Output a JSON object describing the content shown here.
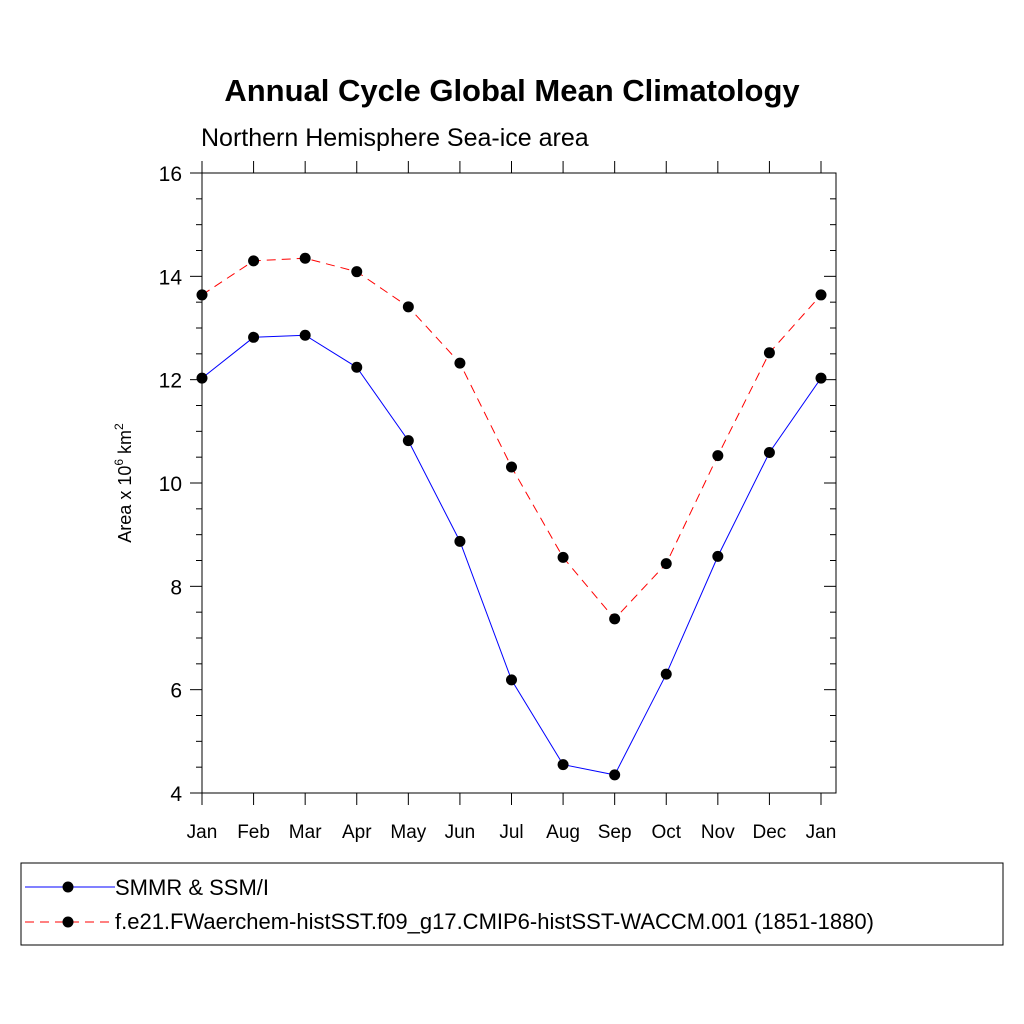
{
  "chart_data": {
    "type": "line",
    "title": "Annual Cycle Global Mean Climatology",
    "subtitle": "Northern Hemisphere Sea-ice area",
    "ylabel": {
      "base": "Area x 10",
      "exponent": "6",
      "unit": " km",
      "unit_exponent": "2"
    },
    "xlabel": "",
    "categories": [
      "Jan",
      "Feb",
      "Mar",
      "Apr",
      "May",
      "Jun",
      "Jul",
      "Aug",
      "Sep",
      "Oct",
      "Nov",
      "Dec",
      "Jan"
    ],
    "ylim": [
      4,
      16
    ],
    "yticks": [
      4,
      6,
      8,
      10,
      12,
      14,
      16
    ],
    "grid": false,
    "legend_position": "bottom",
    "series": [
      {
        "name": "SMMR & SSM/I",
        "color": "#0000ff",
        "dashed": false,
        "values": [
          12.03,
          12.82,
          12.86,
          12.24,
          10.82,
          8.87,
          6.19,
          4.55,
          4.35,
          6.3,
          8.58,
          10.59,
          12.03
        ]
      },
      {
        "name": "f.e21.FWaerchem-histSST.f09_g17.CMIP6-histSST-WACCM.001 (1851-1880)",
        "color": "#ff0000",
        "dashed": true,
        "values": [
          13.64,
          14.3,
          14.35,
          14.09,
          13.41,
          12.32,
          10.31,
          8.56,
          7.37,
          8.44,
          10.53,
          12.52,
          13.64
        ]
      }
    ]
  }
}
